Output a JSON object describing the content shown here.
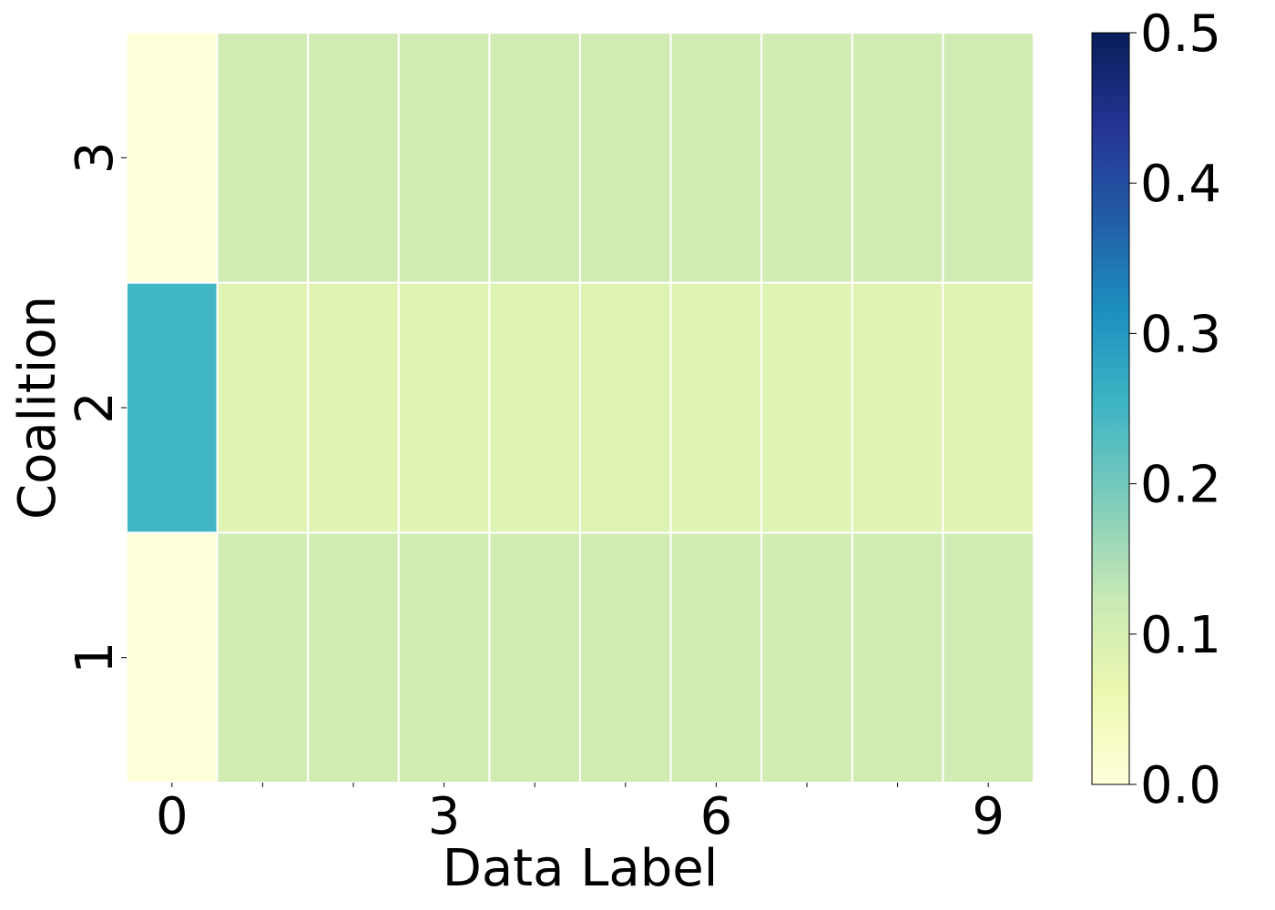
{
  "chart_data": {
    "type": "heatmap",
    "title": "",
    "xlabel": "Data Label",
    "ylabel": "Coalition",
    "x_categories": [
      "0",
      "1",
      "2",
      "3",
      "4",
      "5",
      "6",
      "7",
      "8",
      "9"
    ],
    "x_tick_labels_shown": [
      "0",
      "3",
      "6",
      "9"
    ],
    "y_categories": [
      "1",
      "2",
      "3"
    ],
    "values": [
      [
        0.0,
        0.111,
        0.111,
        0.111,
        0.111,
        0.111,
        0.111,
        0.111,
        0.111,
        0.111
      ],
      [
        0.25,
        0.083,
        0.083,
        0.083,
        0.085,
        0.087,
        0.085,
        0.085,
        0.083,
        0.083
      ],
      [
        0.0,
        0.111,
        0.111,
        0.111,
        0.111,
        0.111,
        0.111,
        0.111,
        0.111,
        0.111
      ]
    ],
    "colorbar": {
      "colormap": "YlGnBu",
      "range": [
        0.0,
        0.5
      ],
      "tick_labels": [
        "0.0",
        "0.1",
        "0.2",
        "0.3",
        "0.4",
        "0.5"
      ]
    },
    "grid": false
  }
}
